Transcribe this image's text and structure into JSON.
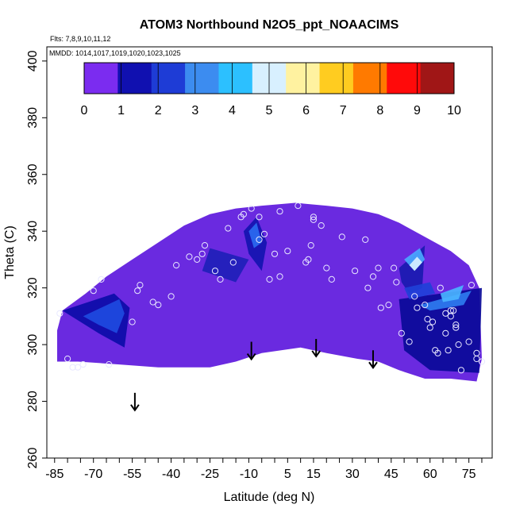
{
  "chart_data": {
    "type": "heatmap",
    "title": "ATOM3 Northbound N2O5_ppt_NOAACIMS",
    "flights_text": "Flts: 7,8,9,10,11,12",
    "mmdd_text": "MMDD: 1014,1017,1019,1020,1023,1025",
    "xlabel": "Latitude (deg N)",
    "ylabel": "Theta (C)",
    "xlim": [
      -88,
      84
    ],
    "ylim": [
      260,
      405
    ],
    "x_ticks": [
      -85,
      -70,
      -55,
      -40,
      -25,
      -10,
      5,
      15,
      30,
      45,
      60,
      75
    ],
    "y_ticks": [
      260,
      280,
      300,
      320,
      340,
      360,
      380,
      400
    ],
    "colorbar": {
      "range": [
        0,
        10
      ],
      "ticks": [
        0,
        1,
        2,
        3,
        4,
        5,
        6,
        7,
        8,
        9,
        10
      ],
      "colors": [
        "#7b2cf0",
        "#1010b0",
        "#1e3cd6",
        "#3c8cf0",
        "#2cc0ff",
        "#d8f0ff",
        "#fff2a0",
        "#ffcc20",
        "#ff7a00",
        "#ff0a0a",
        "#a01616"
      ]
    },
    "field": {
      "background_color": "#6a2ae0",
      "boundary": [
        [
          -84,
          294
        ],
        [
          -76,
          294
        ],
        [
          -60,
          293
        ],
        [
          -45,
          292
        ],
        [
          -25,
          292
        ],
        [
          -15,
          294
        ],
        [
          -5,
          297
        ],
        [
          10,
          299
        ],
        [
          20,
          297
        ],
        [
          32,
          295
        ],
        [
          40,
          294
        ],
        [
          48,
          291
        ],
        [
          58,
          288
        ],
        [
          68,
          288
        ],
        [
          78,
          287
        ],
        [
          80,
          295
        ],
        [
          79,
          320
        ],
        [
          75,
          328
        ],
        [
          68,
          333
        ],
        [
          58,
          338
        ],
        [
          48,
          343
        ],
        [
          40,
          346
        ],
        [
          30,
          348
        ],
        [
          20,
          349
        ],
        [
          8,
          350
        ],
        [
          -5,
          349
        ],
        [
          -15,
          348
        ],
        [
          -25,
          346
        ],
        [
          -35,
          342
        ],
        [
          -45,
          336
        ],
        [
          -55,
          330
        ],
        [
          -65,
          324
        ],
        [
          -73,
          318
        ],
        [
          -82,
          312
        ],
        [
          -84,
          305
        ]
      ],
      "patches": [
        {
          "color": "#0c0ca8",
          "points": [
            [
              -82,
              312
            ],
            [
              -62,
              318
            ],
            [
              -56,
              313
            ],
            [
              -58,
              299
            ],
            [
              -68,
              304
            ]
          ]
        },
        {
          "color": "#1e4ae0",
          "points": [
            [
              -74,
              310
            ],
            [
              -60,
              316
            ],
            [
              -58,
              311
            ],
            [
              -61,
              304
            ],
            [
              -68,
              307
            ]
          ]
        },
        {
          "color": "#1414b0",
          "points": [
            [
              -12,
              340
            ],
            [
              -7,
              345
            ],
            [
              -3,
              336
            ],
            [
              -5,
              326
            ],
            [
              -10,
              332
            ]
          ]
        },
        {
          "color": "#2a6af0",
          "points": [
            [
              -10,
              340
            ],
            [
              -7,
              343
            ],
            [
              -5,
              336
            ],
            [
              -8,
              334
            ]
          ]
        },
        {
          "color": "#2020b8",
          "points": [
            [
              -25,
              334
            ],
            [
              -10,
              330
            ],
            [
              -15,
              322
            ],
            [
              -28,
              326
            ]
          ]
        },
        {
          "color": "#1a1ab0",
          "points": [
            [
              48,
              327
            ],
            [
              58,
              335
            ],
            [
              57,
              320
            ],
            [
              52,
              318
            ],
            [
              49,
              322
            ]
          ]
        },
        {
          "color": "#4aa8ff",
          "points": [
            [
              50,
              330
            ],
            [
              56,
              334
            ],
            [
              58,
              330
            ],
            [
              54,
              326
            ]
          ]
        },
        {
          "color": "#d8f0ff",
          "points": [
            [
              52,
              328
            ],
            [
              55,
              331
            ],
            [
              57,
              329
            ],
            [
              54,
              326
            ]
          ]
        },
        {
          "color": "#0a0a98",
          "points": [
            [
              48,
              316
            ],
            [
              80,
              320
            ],
            [
              79,
              290
            ],
            [
              60,
              291
            ],
            [
              50,
              298
            ]
          ]
        },
        {
          "color": "#2e7cf0",
          "points": [
            [
              56,
              314
            ],
            [
              76,
              319
            ],
            [
              73,
              314
            ],
            [
              60,
              312
            ]
          ]
        },
        {
          "color": "#4ab4ff",
          "points": [
            [
              64,
              318
            ],
            [
              73,
              321
            ],
            [
              71,
              316
            ],
            [
              65,
              315
            ]
          ]
        },
        {
          "color": "#2040d8",
          "points": [
            [
              50,
              320
            ],
            [
              60,
              322
            ],
            [
              62,
              318
            ],
            [
              52,
              316
            ]
          ]
        }
      ],
      "observations": [
        [
          -83,
          311
        ],
        [
          -80,
          295
        ],
        [
          -78,
          292
        ],
        [
          -76,
          292
        ],
        [
          -74,
          293
        ],
        [
          -64,
          293
        ],
        [
          -70,
          319
        ],
        [
          -67,
          323
        ],
        [
          -55,
          308
        ],
        [
          -52,
          321
        ],
        [
          -53,
          319
        ],
        [
          -47,
          315
        ],
        [
          -45,
          314
        ],
        [
          -40,
          317
        ],
        [
          -38,
          328
        ],
        [
          -33,
          331
        ],
        [
          -30,
          330
        ],
        [
          -28,
          332
        ],
        [
          -27,
          335
        ],
        [
          -23,
          326
        ],
        [
          -21,
          323
        ],
        [
          -18,
          341
        ],
        [
          -16,
          329
        ],
        [
          -13,
          345
        ],
        [
          -12,
          346
        ],
        [
          -9,
          348
        ],
        [
          -6,
          345
        ],
        [
          -6,
          337
        ],
        [
          -4,
          339
        ],
        [
          -2,
          323
        ],
        [
          0,
          332
        ],
        [
          2,
          347
        ],
        [
          2,
          324
        ],
        [
          5,
          333
        ],
        [
          9,
          349
        ],
        [
          12,
          329
        ],
        [
          13,
          330
        ],
        [
          14,
          335
        ],
        [
          15,
          345
        ],
        [
          15,
          344
        ],
        [
          18,
          342
        ],
        [
          20,
          327
        ],
        [
          22,
          323
        ],
        [
          26,
          338
        ],
        [
          31,
          326
        ],
        [
          35,
          337
        ],
        [
          36,
          320
        ],
        [
          38,
          324
        ],
        [
          40,
          327
        ],
        [
          41,
          313
        ],
        [
          44,
          314
        ],
        [
          46,
          327
        ],
        [
          47,
          322
        ],
        [
          49,
          304
        ],
        [
          52,
          301
        ],
        [
          54,
          317
        ],
        [
          55,
          313
        ],
        [
          58,
          314
        ],
        [
          59,
          309
        ],
        [
          60,
          306
        ],
        [
          61,
          308
        ],
        [
          62,
          298
        ],
        [
          63,
          297
        ],
        [
          64,
          320
        ],
        [
          66,
          311
        ],
        [
          66,
          304
        ],
        [
          67,
          298
        ],
        [
          68,
          312
        ],
        [
          68,
          310
        ],
        [
          69,
          312
        ],
        [
          70,
          307
        ],
        [
          70,
          306
        ],
        [
          71,
          300
        ],
        [
          72,
          291
        ],
        [
          75,
          301
        ],
        [
          76,
          321
        ],
        [
          78,
          297
        ],
        [
          78,
          295
        ],
        [
          80,
          294
        ]
      ]
    },
    "arrows": [
      [
        -54,
        283
      ],
      [
        -9,
        301
      ],
      [
        16,
        302
      ],
      [
        38,
        298
      ]
    ]
  }
}
